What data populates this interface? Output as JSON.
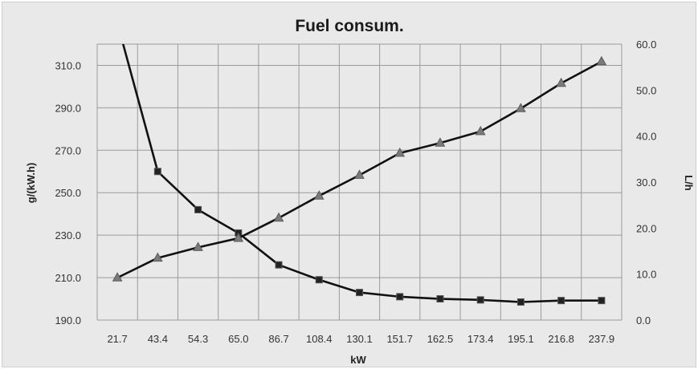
{
  "chart_data": {
    "type": "line",
    "title": "Fuel consum.",
    "xlabel": "kW",
    "ylabel_left": "g/(kW.h)",
    "ylabel_right": "L/h",
    "categories": [
      "21.7",
      "43.4",
      "54.3",
      "65.0",
      "86.7",
      "108.4",
      "130.1",
      "151.7",
      "162.5",
      "173.4",
      "195.1",
      "216.8",
      "237.9"
    ],
    "ylim_left": [
      190,
      320
    ],
    "ylim_right": [
      0,
      60
    ],
    "yticks_left": [
      "190.0",
      "210.0",
      "230.0",
      "250.0",
      "270.0",
      "290.0",
      "310.0"
    ],
    "yticks_right": [
      "0.0",
      "10.0",
      "20.0",
      "30.0",
      "40.0",
      "50.0",
      "60.0"
    ],
    "grid": true,
    "series": [
      {
        "axis": "left",
        "marker": "square",
        "values": [
          330,
          260,
          242,
          231,
          216,
          209,
          203,
          201,
          200,
          199.5,
          198.5,
          199.2,
          199.2
        ]
      },
      {
        "axis": "right",
        "marker": "triangle",
        "values": [
          9.2,
          13.5,
          15.8,
          17.8,
          22.2,
          27.0,
          31.5,
          36.3,
          38.5,
          41.0,
          46.0,
          51.5,
          56.2
        ]
      }
    ],
    "colors": {
      "line": "#111111",
      "marker_fill": "#7a7a7a",
      "grid": "#9a9a9a",
      "background": "#e9e9e9"
    }
  }
}
